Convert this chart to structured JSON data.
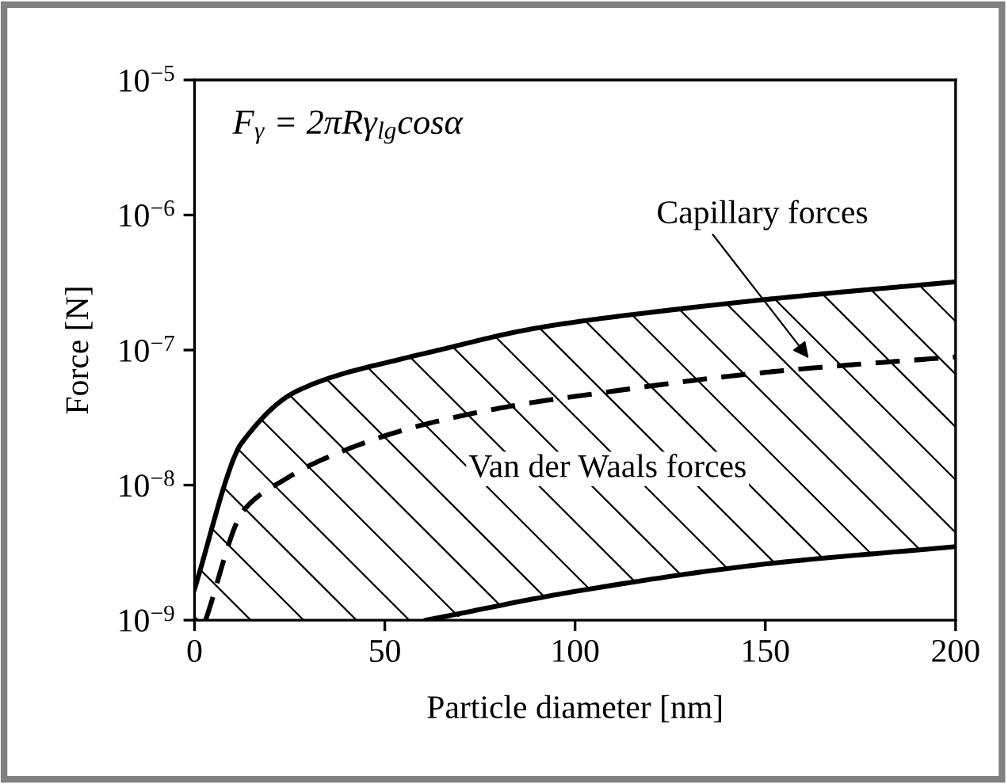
{
  "chart_data": {
    "type": "line",
    "xlabel": "Particle diameter [nm]",
    "ylabel": "Force [N]",
    "series": [
      {
        "color": "#000000",
        "line_style": "solid",
        "x": [
          0,
          11.4,
          12.1,
          26.5,
          56.6,
          60.9,
          89.6,
          129.7,
          158.4,
          200
        ],
        "values": [
          1.7e-09,
          1.85e-08,
          2e-08,
          4.9e-08,
          8.9e-08,
          9.5e-08,
          1.45e-07,
          2.05e-07,
          2.5e-07,
          3.2e-07
        ],
        "upper": [
          1.7e-09,
          1.85e-08,
          2e-08,
          4.9e-08,
          8.9e-08,
          9.5e-08,
          1.45e-07,
          2.05e-07,
          2.5e-07,
          3.2e-07
        ],
        "lower": [
          1e-09,
          1e-09,
          1e-09,
          1e-09,
          1e-09,
          1e-09,
          1.45e-09,
          2.2e-09,
          2.8e-09,
          3.5e-09
        ]
      },
      {
        "color": "#000000",
        "line_style": "dashed",
        "x": [
          2.9,
          12.9,
          23.7,
          33.7,
          58,
          86.7,
          104,
          138.3,
          158.4,
          200
        ],
        "values": [
          1e-09,
          6.5e-09,
          1.1e-08,
          1.55e-08,
          2.7e-08,
          4e-08,
          4.7e-08,
          6.3e-08,
          7.2e-08,
          8.9e-08
        ]
      },
      {
        "color": "#000000",
        "line_style": "solid",
        "x": [
          60.9,
          101,
          149.8,
          200
        ],
        "values": [
          1e-09,
          1.65e-09,
          2.6e-09,
          3.5e-09
        ]
      }
    ],
    "log": "y",
    "xlim": [
      0,
      200
    ],
    "xticks": [
      0,
      50,
      100,
      150,
      200
    ],
    "ylim": [
      1e-09,
      1e-05
    ],
    "yticks": [
      {
        "value": 1e-09,
        "label": "10$^{−9}$"
      },
      {
        "value": 1e-08,
        "label": "10$^{−8}$"
      },
      {
        "value": 1e-07,
        "label": "10$^{−7}$"
      },
      {
        "value": 1e-06,
        "label": "10$^{−6}$"
      },
      {
        "value": 1e-05,
        "label": "10$^{−5}$"
      }
    ],
    "grid": false,
    "legend": false,
    "annotations": [
      "F$_{γ}$ = 2πRγ$_{lg}$cosα",
      "Capillary forces",
      "Van der Waals forces"
    ]
  }
}
